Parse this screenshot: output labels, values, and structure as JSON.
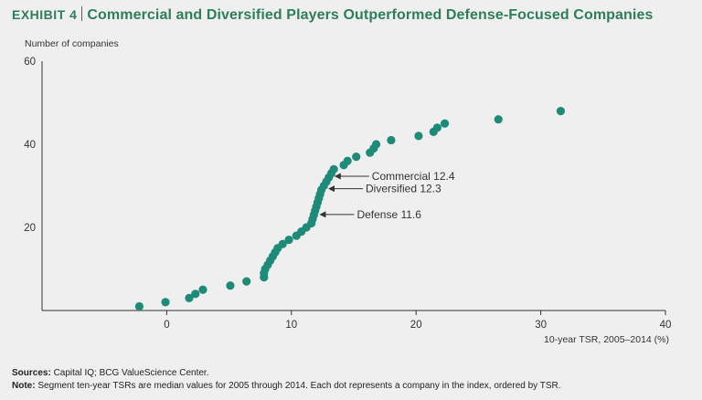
{
  "title": {
    "exhibit": "Exhibit 4",
    "text": "Commercial and Diversified Players Outperformed Defense-Focused Companies"
  },
  "colors": {
    "accent": "#2e7d5b",
    "dot": "#1e8a78",
    "axis": "#333333"
  },
  "chart_data": {
    "type": "scatter",
    "ylabel": "Number of companies",
    "xlabel": "10-year TSR, 2005–2014 (%)",
    "xlim": [
      -10,
      40
    ],
    "ylim": [
      0,
      60
    ],
    "x_ticks": [
      0,
      10,
      20,
      30,
      40
    ],
    "y_ticks": [
      20,
      40,
      60
    ],
    "points": [
      [
        -2.2,
        1
      ],
      [
        -0.1,
        2
      ],
      [
        1.8,
        3
      ],
      [
        2.3,
        4
      ],
      [
        2.9,
        5
      ],
      [
        5.1,
        6
      ],
      [
        6.4,
        7
      ],
      [
        7.8,
        8
      ],
      [
        7.8,
        9
      ],
      [
        7.9,
        10
      ],
      [
        8.1,
        11
      ],
      [
        8.3,
        12
      ],
      [
        8.5,
        13
      ],
      [
        8.7,
        14
      ],
      [
        8.9,
        15
      ],
      [
        9.3,
        16
      ],
      [
        9.8,
        17
      ],
      [
        10.4,
        18
      ],
      [
        10.8,
        19
      ],
      [
        11.2,
        20
      ],
      [
        11.6,
        21
      ],
      [
        11.7,
        22
      ],
      [
        11.8,
        23
      ],
      [
        11.9,
        24
      ],
      [
        12.0,
        25
      ],
      [
        12.1,
        26
      ],
      [
        12.2,
        27
      ],
      [
        12.3,
        28
      ],
      [
        12.4,
        29
      ],
      [
        12.6,
        30
      ],
      [
        12.8,
        31
      ],
      [
        13.0,
        32
      ],
      [
        13.2,
        33
      ],
      [
        13.4,
        34
      ],
      [
        14.2,
        35
      ],
      [
        14.5,
        36
      ],
      [
        15.2,
        37
      ],
      [
        16.3,
        38
      ],
      [
        16.6,
        39
      ],
      [
        16.8,
        40
      ],
      [
        18.0,
        41
      ],
      [
        20.2,
        42
      ],
      [
        21.4,
        43
      ],
      [
        21.7,
        44
      ],
      [
        22.3,
        45
      ],
      [
        26.6,
        46
      ],
      [
        31.6,
        48
      ]
    ],
    "annotations": [
      {
        "label": "Commercial 12.4",
        "x": 13.3,
        "y": 32.3
      },
      {
        "label": "Diversified 12.3",
        "x": 12.8,
        "y": 29.3
      },
      {
        "label": "Defense 11.6",
        "x": 12.1,
        "y": 23.1
      }
    ]
  },
  "footer": {
    "sources_label": "Sources:",
    "sources_text": "Capital IQ; BCG ValueScience Center.",
    "note_label": "Note:",
    "note_text": "Segment ten-year TSRs are median values for 2005 through 2014. Each dot represents a company in the index, ordered by TSR."
  }
}
